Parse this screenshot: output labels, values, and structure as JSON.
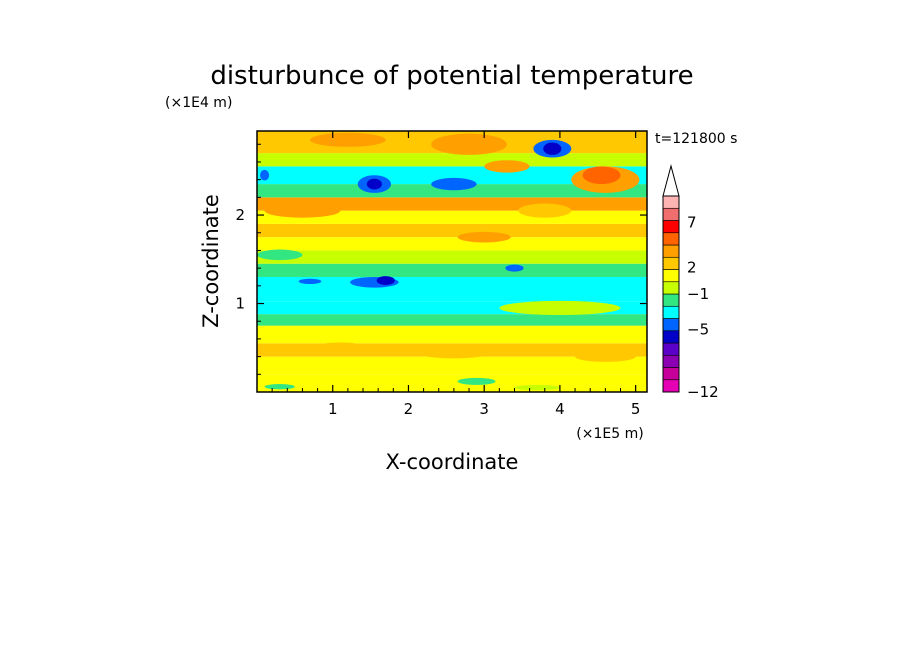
{
  "chart_data": {
    "type": "heatmap",
    "title": "disturbunce of potential temperature",
    "xlabel": "X-coordinate",
    "ylabel": "Z-coordinate",
    "x_unit": "(×1E5 m)",
    "y_unit": "(×1E4 m)",
    "time_label": "t=121800 s",
    "xlim": [
      0,
      5.15
    ],
    "ylim": [
      0,
      2.95
    ],
    "x_ticks": [
      1,
      2,
      3,
      4,
      5
    ],
    "y_ticks": [
      1,
      2
    ],
    "x_tick_labels": [
      "1",
      "2",
      "3",
      "4",
      "5"
    ],
    "y_tick_labels": [
      "1",
      "2"
    ],
    "colorbar": {
      "labels": [
        {
          "text": "7",
          "value": 7
        },
        {
          "text": "2",
          "value": 2
        },
        {
          "text": "−1",
          "value": -1
        },
        {
          "text": "−5",
          "value": -5
        },
        {
          "text": "−12",
          "value": -12
        }
      ],
      "colors": [
        "#e600b4",
        "#c8009b",
        "#8c00b4",
        "#5a00c8",
        "#0000c8",
        "#0064ff",
        "#00ffff",
        "#32e682",
        "#c8ff00",
        "#ffff00",
        "#ffc800",
        "#ffa000",
        "#ff6400",
        "#ff0000",
        "#f06e6e",
        "#ffb4b4"
      ]
    },
    "bands": [
      {
        "z0": 0.0,
        "z1": 0.2,
        "color": "#ffff00"
      },
      {
        "z0": 0.2,
        "z1": 0.4,
        "color": "#ffff00"
      },
      {
        "z0": 0.4,
        "z1": 0.55,
        "color": "#ffc800"
      },
      {
        "z0": 0.55,
        "z1": 0.75,
        "color": "#ffff00"
      },
      {
        "z0": 0.75,
        "z1": 0.88,
        "color": "#32e682"
      },
      {
        "z0": 0.88,
        "z1": 1.02,
        "color": "#00ffff"
      },
      {
        "z0": 1.02,
        "z1": 1.3,
        "color": "#00ffff"
      },
      {
        "z0": 1.3,
        "z1": 1.45,
        "color": "#32e682"
      },
      {
        "z0": 1.45,
        "z1": 1.6,
        "color": "#c8ff00"
      },
      {
        "z0": 1.6,
        "z1": 1.75,
        "color": "#ffff00"
      },
      {
        "z0": 1.75,
        "z1": 1.9,
        "color": "#ffc800"
      },
      {
        "z0": 1.9,
        "z1": 2.05,
        "color": "#ffff00"
      },
      {
        "z0": 2.05,
        "z1": 2.2,
        "color": "#ffa000"
      },
      {
        "z0": 2.2,
        "z1": 2.35,
        "color": "#32e682"
      },
      {
        "z0": 2.35,
        "z1": 2.55,
        "color": "#00ffff"
      },
      {
        "z0": 2.55,
        "z1": 2.7,
        "color": "#c8ff00"
      },
      {
        "z0": 2.7,
        "z1": 2.95,
        "color": "#ffc800"
      }
    ],
    "blobs": [
      {
        "x": 1.55,
        "z": 1.24,
        "rx": 0.32,
        "rz": 0.06,
        "color": "#0064ff"
      },
      {
        "x": 1.7,
        "z": 1.26,
        "rx": 0.12,
        "rz": 0.05,
        "color": "#0000c8"
      },
      {
        "x": 0.7,
        "z": 1.25,
        "rx": 0.15,
        "rz": 0.03,
        "color": "#0064ff"
      },
      {
        "x": 1.55,
        "z": 2.35,
        "rx": 0.22,
        "rz": 0.1,
        "color": "#0064ff"
      },
      {
        "x": 1.55,
        "z": 2.35,
        "rx": 0.1,
        "rz": 0.06,
        "color": "#0000c8"
      },
      {
        "x": 2.6,
        "z": 2.35,
        "rx": 0.3,
        "rz": 0.07,
        "color": "#0064ff"
      },
      {
        "x": 3.9,
        "z": 2.75,
        "rx": 0.25,
        "rz": 0.1,
        "color": "#0064ff"
      },
      {
        "x": 3.9,
        "z": 2.75,
        "rx": 0.12,
        "rz": 0.07,
        "color": "#0000c8"
      },
      {
        "x": 0.1,
        "z": 2.45,
        "rx": 0.06,
        "rz": 0.06,
        "color": "#0064ff"
      },
      {
        "x": 3.4,
        "z": 1.4,
        "rx": 0.12,
        "rz": 0.04,
        "color": "#0064ff"
      },
      {
        "x": 4.6,
        "z": 2.4,
        "rx": 0.45,
        "rz": 0.15,
        "color": "#ffa000"
      },
      {
        "x": 4.55,
        "z": 2.45,
        "rx": 0.25,
        "rz": 0.1,
        "color": "#ff6400"
      },
      {
        "x": 2.8,
        "z": 2.8,
        "rx": 0.5,
        "rz": 0.12,
        "color": "#ffa000"
      },
      {
        "x": 3.3,
        "z": 2.55,
        "rx": 0.3,
        "rz": 0.07,
        "color": "#ffa000"
      },
      {
        "x": 0.6,
        "z": 2.05,
        "rx": 0.5,
        "rz": 0.08,
        "color": "#ffa000"
      },
      {
        "x": 3.0,
        "z": 1.75,
        "rx": 0.35,
        "rz": 0.06,
        "color": "#ffa000"
      },
      {
        "x": 1.2,
        "z": 2.85,
        "rx": 0.5,
        "rz": 0.08,
        "color": "#ffa000"
      },
      {
        "x": 4.0,
        "z": 0.95,
        "rx": 0.8,
        "rz": 0.08,
        "color": "#c8ff00"
      },
      {
        "x": 3.8,
        "z": 2.05,
        "rx": 0.35,
        "rz": 0.08,
        "color": "#ffc800"
      },
      {
        "x": 0.3,
        "z": 1.55,
        "rx": 0.3,
        "rz": 0.06,
        "color": "#32e682"
      },
      {
        "x": 2.6,
        "z": 0.45,
        "rx": 0.5,
        "rz": 0.07,
        "color": "#ffc800"
      },
      {
        "x": 4.6,
        "z": 0.4,
        "rx": 0.4,
        "rz": 0.06,
        "color": "#ffc800"
      },
      {
        "x": 1.1,
        "z": 0.5,
        "rx": 0.35,
        "rz": 0.06,
        "color": "#ffc800"
      },
      {
        "x": 2.9,
        "z": 0.12,
        "rx": 0.25,
        "rz": 0.04,
        "color": "#32e682"
      },
      {
        "x": 0.3,
        "z": 0.06,
        "rx": 0.2,
        "rz": 0.03,
        "color": "#32e682"
      },
      {
        "x": 3.7,
        "z": 0.05,
        "rx": 0.3,
        "rz": 0.03,
        "color": "#c8ff00"
      }
    ]
  }
}
